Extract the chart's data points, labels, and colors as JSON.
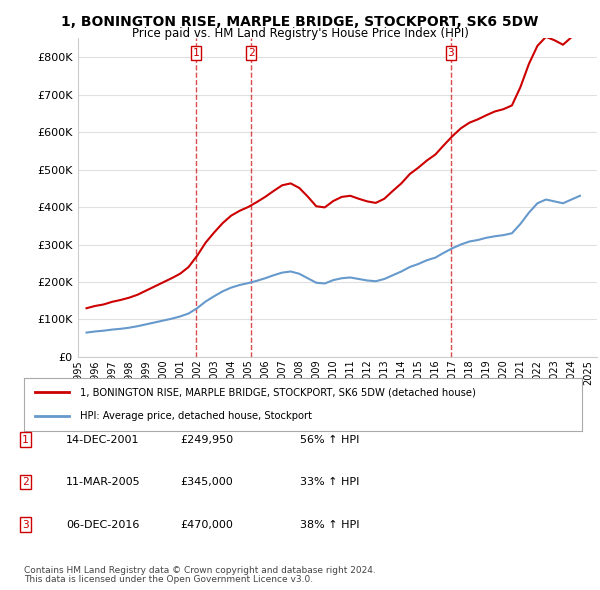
{
  "title": "1, BONINGTON RISE, MARPLE BRIDGE, STOCKPORT, SK6 5DW",
  "subtitle": "Price paid vs. HM Land Registry's House Price Index (HPI)",
  "legend_line1": "1, BONINGTON RISE, MARPLE BRIDGE, STOCKPORT, SK6 5DW (detached house)",
  "legend_line2": "HPI: Average price, detached house, Stockport",
  "footer1": "Contains HM Land Registry data © Crown copyright and database right 2024.",
  "footer2": "This data is licensed under the Open Government Licence v3.0.",
  "sale_color": "#cc0000",
  "hpi_color": "#6699cc",
  "marker_line_color": "#cc0000",
  "ylim": [
    0,
    850000
  ],
  "yticks": [
    0,
    100000,
    200000,
    300000,
    400000,
    500000,
    600000,
    700000,
    800000
  ],
  "ytick_labels": [
    "£0",
    "£100K",
    "£200K",
    "£300K",
    "£400K",
    "£500K",
    "£600K",
    "£700K",
    "£800K"
  ],
  "transactions": [
    {
      "num": 1,
      "date": "14-DEC-2001",
      "price": 249950,
      "pct": "56%",
      "dir": "↑",
      "x_year": 2001.95
    },
    {
      "num": 2,
      "date": "11-MAR-2005",
      "price": 345000,
      "pct": "33%",
      "dir": "↑",
      "x_year": 2005.19
    },
    {
      "num": 3,
      "date": "06-DEC-2016",
      "price": 470000,
      "pct": "38%",
      "dir": "↑",
      "x_year": 2016.92
    }
  ],
  "hpi_data": {
    "years": [
      1995.5,
      1996.0,
      1996.5,
      1997.0,
      1997.5,
      1998.0,
      1998.5,
      1999.0,
      1999.5,
      2000.0,
      2000.5,
      2001.0,
      2001.5,
      2002.0,
      2002.5,
      2003.0,
      2003.5,
      2004.0,
      2004.5,
      2005.0,
      2005.5,
      2006.0,
      2006.5,
      2007.0,
      2007.5,
      2008.0,
      2008.5,
      2009.0,
      2009.5,
      2010.0,
      2010.5,
      2011.0,
      2011.5,
      2012.0,
      2012.5,
      2013.0,
      2013.5,
      2014.0,
      2014.5,
      2015.0,
      2015.5,
      2016.0,
      2016.5,
      2017.0,
      2017.5,
      2018.0,
      2018.5,
      2019.0,
      2019.5,
      2020.0,
      2020.5,
      2021.0,
      2021.5,
      2022.0,
      2022.5,
      2023.0,
      2023.5,
      2024.0,
      2024.5
    ],
    "values": [
      65000,
      68000,
      70000,
      73000,
      75000,
      78000,
      82000,
      87000,
      92000,
      97000,
      102000,
      108000,
      116000,
      130000,
      148000,
      162000,
      175000,
      185000,
      192000,
      197000,
      203000,
      210000,
      218000,
      225000,
      228000,
      222000,
      210000,
      198000,
      196000,
      205000,
      210000,
      212000,
      208000,
      204000,
      202000,
      208000,
      218000,
      228000,
      240000,
      248000,
      258000,
      265000,
      278000,
      290000,
      300000,
      308000,
      312000,
      318000,
      322000,
      325000,
      330000,
      355000,
      385000,
      410000,
      420000,
      415000,
      410000,
      420000,
      430000
    ],
    "xlim_start": 1995.0,
    "xlim_end": 2025.5
  },
  "sale_hpi_data": {
    "years": [
      1995.5,
      1996.0,
      1996.5,
      1997.0,
      1997.5,
      1998.0,
      1998.5,
      1999.0,
      1999.5,
      2000.0,
      2000.5,
      2001.0,
      2001.5,
      2002.0,
      2002.5,
      2003.0,
      2003.5,
      2004.0,
      2004.5,
      2005.0,
      2005.5,
      2006.0,
      2006.5,
      2007.0,
      2007.5,
      2008.0,
      2008.5,
      2009.0,
      2009.5,
      2010.0,
      2010.5,
      2011.0,
      2011.5,
      2012.0,
      2012.5,
      2013.0,
      2013.5,
      2014.0,
      2014.5,
      2015.0,
      2015.5,
      2016.0,
      2016.5,
      2017.0,
      2017.5,
      2018.0,
      2018.5,
      2019.0,
      2019.5,
      2020.0,
      2020.5,
      2021.0,
      2021.5,
      2022.0,
      2022.5,
      2023.0,
      2023.5,
      2024.0,
      2024.5
    ],
    "values": [
      130000,
      136000,
      140000,
      147000,
      152000,
      158000,
      166000,
      177000,
      188000,
      199000,
      210000,
      222000,
      240000,
      270000,
      305000,
      332000,
      357000,
      377000,
      390000,
      400000,
      413000,
      427000,
      443000,
      458000,
      463000,
      451000,
      428000,
      402000,
      399000,
      416000,
      427000,
      430000,
      422000,
      415000,
      411000,
      422000,
      443000,
      463000,
      488000,
      505000,
      524000,
      540000,
      565000,
      589000,
      610000,
      625000,
      634000,
      645000,
      655000,
      661000,
      671000,
      720000,
      782000,
      830000,
      854000,
      845000,
      833000,
      853000,
      875000
    ],
    "xlim_start": 1995.0,
    "xlim_end": 2025.5
  },
  "xtick_years": [
    1995,
    1996,
    1997,
    1998,
    1999,
    2000,
    2001,
    2002,
    2003,
    2004,
    2005,
    2006,
    2007,
    2008,
    2009,
    2010,
    2011,
    2012,
    2013,
    2014,
    2015,
    2016,
    2017,
    2018,
    2019,
    2020,
    2021,
    2022,
    2023,
    2024,
    2025
  ],
  "bg_color": "#ffffff",
  "grid_color": "#e0e0e0"
}
